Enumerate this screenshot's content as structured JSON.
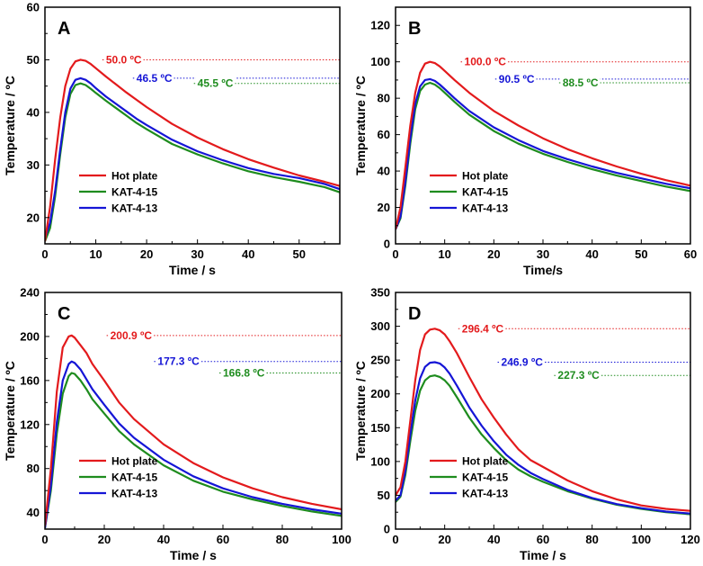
{
  "colors": {
    "hot": "#e31a1c",
    "k15": "#1e8c1e",
    "k13": "#1515d6"
  },
  "chart_data": [
    {
      "type": "line",
      "panel": "A",
      "xlabel": "Time / s",
      "ylabel": "Temperature / ºC",
      "xlim": [
        0,
        58
      ],
      "ylim": [
        15,
        60
      ],
      "xticks": [
        0,
        10,
        20,
        30,
        40,
        50
      ],
      "yticks": [
        20,
        30,
        40,
        50,
        60
      ],
      "annotations": [
        {
          "text": "50.0 ºC",
          "y": 50.0,
          "x": 12,
          "series": "hot"
        },
        {
          "text": "46.5 ºC",
          "y": 46.5,
          "x": 18,
          "series": "k13"
        },
        {
          "text": "45.5 ºC",
          "y": 45.5,
          "x": 30,
          "series": "k15"
        }
      ],
      "legend": [
        "Hot plate",
        "KAT-4-15",
        "KAT-4-13"
      ],
      "legend_position": "lower-left",
      "series": [
        {
          "name": "Hot plate",
          "key": "hot",
          "x": [
            0,
            1,
            2,
            3,
            4,
            5,
            6,
            7,
            8,
            9,
            10,
            12,
            14,
            16,
            18,
            20,
            25,
            30,
            35,
            40,
            45,
            50,
            55,
            58
          ],
          "y": [
            15.5,
            22,
            31,
            39,
            45,
            48.3,
            49.7,
            50,
            49.8,
            49.2,
            48.4,
            46.8,
            45.3,
            43.8,
            42.4,
            41,
            37.8,
            35.2,
            33,
            31.1,
            29.5,
            28,
            26.8,
            26
          ]
        },
        {
          "name": "KAT-4-15",
          "key": "k15",
          "x": [
            0,
            1,
            2,
            3,
            4,
            5,
            6,
            7,
            8,
            9,
            10,
            12,
            14,
            16,
            18,
            20,
            25,
            30,
            35,
            40,
            45,
            50,
            55,
            58
          ],
          "y": [
            15.5,
            18,
            24,
            32,
            39,
            43.5,
            45.2,
            45.5,
            45.2,
            44.5,
            43.7,
            42.2,
            40.8,
            39.4,
            38,
            36.8,
            34,
            32,
            30.3,
            28.8,
            27.7,
            26.8,
            25.8,
            24.8
          ]
        },
        {
          "name": "KAT-4-13",
          "key": "k13",
          "x": [
            0,
            1,
            2,
            3,
            4,
            5,
            6,
            7,
            8,
            9,
            10,
            12,
            14,
            16,
            18,
            20,
            25,
            30,
            35,
            40,
            45,
            50,
            55,
            58
          ],
          "y": [
            16,
            19,
            25,
            33,
            40,
            44.5,
            46.2,
            46.5,
            46.2,
            45.5,
            44.6,
            43,
            41.6,
            40.2,
            38.8,
            37.6,
            34.8,
            32.6,
            30.9,
            29.4,
            28.3,
            27.5,
            26.4,
            25.4
          ]
        }
      ]
    },
    {
      "type": "line",
      "panel": "B",
      "xlabel": "Time/s",
      "ylabel": "Temperature / ºC",
      "xlim": [
        0,
        60
      ],
      "ylim": [
        0,
        130
      ],
      "xticks": [
        0,
        10,
        20,
        30,
        40,
        50,
        60
      ],
      "yticks": [
        0,
        20,
        40,
        60,
        80,
        100,
        120
      ],
      "annotations": [
        {
          "text": "100.0 ºC",
          "y": 100.0,
          "x": 14,
          "series": "hot"
        },
        {
          "text": "90.5 ºC",
          "y": 90.5,
          "x": 21,
          "series": "k13"
        },
        {
          "text": "88.5 ºC",
          "y": 88.5,
          "x": 34,
          "series": "k15"
        }
      ],
      "legend": [
        "Hot plate",
        "KAT-4-15",
        "KAT-4-13"
      ],
      "legend_position": "lower-left",
      "series": [
        {
          "name": "Hot plate",
          "key": "hot",
          "x": [
            0,
            1,
            2,
            3,
            4,
            5,
            6,
            7,
            8,
            9,
            10,
            12,
            15,
            20,
            25,
            30,
            35,
            40,
            45,
            50,
            55,
            60
          ],
          "y": [
            8,
            20,
            42,
            65,
            83,
            94,
            99,
            100,
            99.3,
            97.5,
            95,
            90,
            83,
            73,
            65,
            58,
            52,
            47,
            42.5,
            38.5,
            35,
            32
          ]
        },
        {
          "name": "KAT-4-15",
          "key": "k15",
          "x": [
            0,
            1,
            2,
            3,
            4,
            5,
            6,
            7,
            8,
            9,
            10,
            12,
            15,
            20,
            25,
            30,
            35,
            40,
            45,
            50,
            55,
            60
          ],
          "y": [
            8,
            14,
            32,
            55,
            74,
            84,
            87.5,
            88.5,
            87.5,
            85.5,
            83,
            78,
            71,
            62,
            55,
            49.5,
            45,
            41,
            37.5,
            34.5,
            31.5,
            29
          ]
        },
        {
          "name": "KAT-4-13",
          "key": "k13",
          "x": [
            0,
            1,
            2,
            3,
            4,
            5,
            6,
            7,
            8,
            9,
            10,
            12,
            15,
            20,
            25,
            30,
            35,
            40,
            45,
            50,
            55,
            60
          ],
          "y": [
            8,
            15,
            34,
            58,
            77,
            86.5,
            90,
            90.5,
            89.5,
            87.5,
            85,
            80,
            73,
            64,
            57,
            51,
            46.5,
            42.5,
            39,
            36,
            33,
            30.5
          ]
        }
      ]
    },
    {
      "type": "line",
      "panel": "C",
      "xlabel": "Time / s",
      "ylabel": "Temperature / ºC",
      "xlim": [
        0,
        100
      ],
      "ylim": [
        25,
        240
      ],
      "xticks": [
        0,
        20,
        40,
        60,
        80,
        100
      ],
      "yticks": [
        40,
        80,
        120,
        160,
        200,
        240
      ],
      "annotations": [
        {
          "text": "200.9 ºC",
          "y": 200.9,
          "x": 22,
          "series": "hot"
        },
        {
          "text": "177.3 ºC",
          "y": 177.3,
          "x": 38,
          "series": "k13"
        },
        {
          "text": "166.8 ºC",
          "y": 166.8,
          "x": 60,
          "series": "k15"
        }
      ],
      "legend": [
        "Hot plate",
        "KAT-4-15",
        "KAT-4-13"
      ],
      "legend_position": "lower-left",
      "series": [
        {
          "name": "Hot plate",
          "key": "hot",
          "x": [
            0,
            2,
            4,
            6,
            8,
            9,
            10,
            12,
            14,
            16,
            20,
            25,
            30,
            40,
            50,
            60,
            70,
            80,
            90,
            100
          ],
          "y": [
            28,
            80,
            150,
            190,
            200,
            200.9,
            199,
            192,
            185,
            175,
            160,
            140,
            125,
            102,
            85,
            72,
            62,
            54,
            48,
            43
          ]
        },
        {
          "name": "KAT-4-15",
          "key": "k15",
          "x": [
            0,
            2,
            4,
            6,
            8,
            9,
            10,
            12,
            14,
            16,
            20,
            25,
            30,
            40,
            50,
            60,
            70,
            80,
            90,
            100
          ],
          "y": [
            26,
            60,
            112,
            148,
            164,
            166.8,
            166,
            160,
            152,
            143,
            130,
            114,
            102,
            83,
            69,
            59,
            52,
            46,
            41,
            37
          ]
        },
        {
          "name": "KAT-4-13",
          "key": "k13",
          "x": [
            0,
            2,
            4,
            6,
            8,
            9,
            10,
            12,
            14,
            16,
            20,
            25,
            30,
            40,
            50,
            60,
            70,
            80,
            90,
            100
          ],
          "y": [
            26,
            65,
            122,
            160,
            175,
            177.3,
            176,
            170,
            161,
            152,
            138,
            121,
            108,
            88,
            73,
            62,
            54,
            48,
            43,
            39
          ]
        }
      ]
    },
    {
      "type": "line",
      "panel": "D",
      "xlabel": "Time  /  s",
      "ylabel": "Temperature / ºC",
      "xlim": [
        0,
        120
      ],
      "ylim": [
        0,
        350
      ],
      "xticks": [
        0,
        20,
        40,
        60,
        80,
        100,
        120
      ],
      "yticks": [
        0,
        50,
        100,
        150,
        200,
        250,
        300,
        350
      ],
      "annotations": [
        {
          "text": "296.4 ºC",
          "y": 296.4,
          "x": 27,
          "series": "hot"
        },
        {
          "text": "246.9 ºC",
          "y": 246.9,
          "x": 43,
          "series": "k13"
        },
        {
          "text": "227.3 ºC",
          "y": 227.3,
          "x": 66,
          "series": "k15"
        }
      ],
      "legend": [
        "Hot plate",
        "KAT-4-15",
        "KAT-4-13"
      ],
      "legend_position": "lower-left",
      "series": [
        {
          "name": "Hot plate",
          "key": "hot",
          "x": [
            0,
            2,
            4,
            6,
            8,
            10,
            12,
            14,
            16,
            18,
            20,
            22,
            25,
            30,
            35,
            40,
            45,
            50,
            55,
            60,
            70,
            80,
            90,
            100,
            110,
            120
          ],
          "y": [
            50,
            62,
            100,
            160,
            220,
            265,
            288,
            295,
            296.4,
            294,
            288,
            278,
            260,
            225,
            192,
            165,
            140,
            118,
            102,
            92,
            72,
            56,
            44,
            35,
            30,
            27
          ]
        },
        {
          "name": "KAT-4-15",
          "key": "k15",
          "x": [
            0,
            2,
            4,
            6,
            8,
            10,
            12,
            14,
            16,
            18,
            20,
            22,
            25,
            30,
            35,
            40,
            45,
            50,
            55,
            60,
            70,
            80,
            90,
            100,
            110,
            120
          ],
          "y": [
            40,
            48,
            80,
            130,
            175,
            205,
            220,
            226,
            227.3,
            225,
            220,
            212,
            195,
            165,
            140,
            120,
            102,
            88,
            78,
            70,
            56,
            45,
            36,
            30,
            25,
            22
          ]
        },
        {
          "name": "KAT-4-13",
          "key": "k13",
          "x": [
            0,
            2,
            4,
            6,
            8,
            10,
            12,
            14,
            16,
            18,
            20,
            22,
            25,
            30,
            35,
            40,
            45,
            50,
            55,
            60,
            70,
            80,
            90,
            100,
            110,
            120
          ],
          "y": [
            42,
            50,
            86,
            140,
            190,
            223,
            240,
            246,
            246.9,
            245,
            239,
            230,
            212,
            180,
            153,
            130,
            110,
            95,
            83,
            74,
            58,
            46,
            37,
            31,
            26,
            23
          ]
        }
      ]
    }
  ]
}
